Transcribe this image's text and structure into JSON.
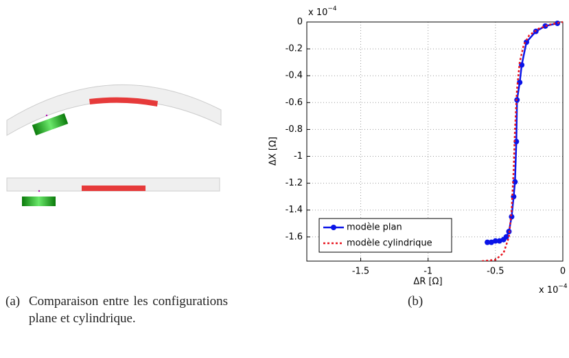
{
  "captions": {
    "a_label": "(a)",
    "a_text": "Comparaison entre les configurations plane et cylindrique.",
    "b_label": "(b)"
  },
  "chart_data": {
    "type": "line",
    "xlabel": "ΔR [Ω]",
    "ylabel": "ΔX [Ω]",
    "multiplier": {
      "base": "x 10",
      "exponent": "−4"
    },
    "xlim": [
      -1.9,
      0
    ],
    "ylim": [
      -1.78,
      0
    ],
    "xticks": [
      -1.5,
      -1,
      -0.5,
      0
    ],
    "yticks": [
      0,
      -0.2,
      -0.4,
      -0.6,
      -0.8,
      -1,
      -1.2,
      -1.4,
      -1.6
    ],
    "grid": true,
    "legend": "lower left",
    "series": [
      {
        "name": "modèle plan",
        "color": "#0a14e8",
        "marker": "circle",
        "x": [
          -0.56,
          -0.53,
          -0.5,
          -0.47,
          -0.44,
          -0.42,
          -0.4,
          -0.38,
          -0.365,
          -0.355,
          -0.345,
          -0.34,
          -0.32,
          -0.305,
          -0.27,
          -0.2,
          -0.13,
          -0.04
        ],
        "values": [
          -1.64,
          -1.64,
          -1.63,
          -1.63,
          -1.62,
          -1.6,
          -1.56,
          -1.45,
          -1.3,
          -1.19,
          -0.89,
          -0.58,
          -0.45,
          -0.32,
          -0.15,
          -0.07,
          -0.03,
          -0.01
        ]
      },
      {
        "name": "modèle cylindrique",
        "color": "#e8141e",
        "marker": "none",
        "x": [
          -0.6,
          -0.5,
          -0.44,
          -0.4,
          -0.38,
          -0.365,
          -0.355,
          -0.34,
          -0.32,
          -0.29,
          -0.25,
          -0.18,
          -0.1,
          0
        ],
        "values": [
          -1.78,
          -1.77,
          -1.72,
          -1.6,
          -1.4,
          -1.1,
          -0.8,
          -0.5,
          -0.3,
          -0.17,
          -0.1,
          -0.05,
          -0.02,
          0
        ]
      }
    ]
  }
}
